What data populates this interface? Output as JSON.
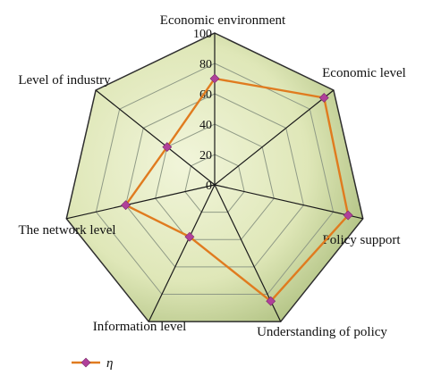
{
  "chart_data": {
    "type": "radar",
    "title": "",
    "categories": [
      "Economic environment",
      "Economic level",
      "Policy support",
      "Understanding of policy",
      "Information level",
      "The network level",
      "Level of industry"
    ],
    "series": [
      {
        "name": "η",
        "values": [
          70,
          92,
          90,
          85,
          38,
          60,
          40
        ],
        "color": "#e07b1f",
        "marker_color": "#b0409a"
      }
    ],
    "r_range": [
      0,
      100
    ],
    "ticks": [
      0,
      20,
      40,
      60,
      80,
      100
    ],
    "tick_labels": [
      "0",
      "20",
      "40",
      "60",
      "80",
      "100"
    ],
    "grid": true,
    "legend_position": "bottom-left",
    "colors": {
      "panel_light": "#f1f5da",
      "panel_dark": "#9db26c",
      "grid_line": "#8f9a86",
      "spoke_line": "#1a1a1a",
      "outline": "#2e2e2e"
    }
  }
}
